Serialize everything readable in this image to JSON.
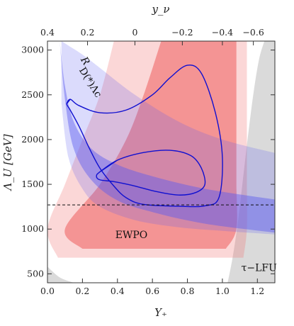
{
  "chart_data": {
    "type": "contour",
    "xlabel": "Y₊",
    "ylabel": "Λ_U [GeV]",
    "top_xlabel": "y_ν",
    "xlim": [
      0.0,
      1.3
    ],
    "ylim": [
      400,
      3100
    ],
    "x_ticks": [
      0.0,
      0.2,
      0.4,
      0.6,
      0.8,
      1.0,
      1.2
    ],
    "x_tick_labels": [
      "0.0",
      "0.2",
      "0.4",
      "0.6",
      "0.8",
      "1.0",
      "1.2"
    ],
    "y_ticks": [
      500,
      1000,
      1500,
      2000,
      2500,
      3000
    ],
    "y_tick_labels": [
      "500",
      "1000",
      "1500",
      "2000",
      "2500",
      "3000"
    ],
    "top_ticks_at_x": [
      0.0,
      0.229,
      0.5,
      0.771,
      1.0,
      1.177
    ],
    "top_tick_labels": [
      "0.4",
      "0.2",
      "0",
      "−0.2",
      "−0.4",
      "−0.6"
    ],
    "reference_line": {
      "y": 1270,
      "style": "dashed"
    },
    "regions": [
      {
        "name": "τ-LFU",
        "color": "#d6d6d6",
        "bands": [
          {
            "x": [
              1.03,
              1.06,
              1.09,
              1.12,
              1.15,
              1.18,
              1.21,
              1.24
            ],
            "y": [
              400,
              700,
              1100,
              1600,
              2100,
              2550,
              2900,
              3100
            ]
          },
          {
            "x": [
              0.0,
              0.07,
              0.15
            ],
            "y": [
              580,
              460,
              400
            ]
          }
        ]
      },
      {
        "name": "R_D(*),Λc",
        "color": "#5b5bf0",
        "outer_band": {
          "x": [
            0.08,
            0.12,
            0.2,
            0.3,
            0.5,
            0.75,
            1.0,
            1.3
          ],
          "upper_y": [
            3100,
            3050,
            2950,
            2800,
            2500,
            2200,
            2000,
            1850
          ],
          "lower_y": [
            2400,
            1800,
            1450,
            1250,
            1100,
            1020,
            980,
            940
          ]
        },
        "inner_band": {
          "x": [
            0.07,
            0.1,
            0.15,
            0.25,
            0.4,
            0.6,
            0.9,
            1.3
          ],
          "upper_y": [
            3100,
            2600,
            2200,
            1900,
            1720,
            1590,
            1450,
            1330
          ],
          "lower_y": [
            3100,
            2450,
            1900,
            1550,
            1320,
            1190,
            1060,
            960
          ]
        }
      },
      {
        "name": "EWPO",
        "color": "#f07070",
        "outer_band": {
          "y": [
            680,
            1000,
            1500,
            2000,
            2500,
            3100
          ],
          "left_x": [
            0.06,
            0.0,
            0.1,
            0.2,
            0.3,
            0.38
          ],
          "right_x": [
            1.12,
            1.14,
            1.14,
            1.14,
            1.14,
            1.14
          ]
        },
        "inner_band": {
          "y": [
            780,
            1000,
            1500,
            2000,
            2500,
            3100
          ],
          "left_x": [
            0.2,
            0.1,
            0.3,
            0.45,
            0.55,
            0.65
          ],
          "right_x": [
            1.02,
            1.08,
            1.08,
            1.08,
            1.08,
            1.08
          ]
        }
      }
    ],
    "contours": [
      {
        "level": "outer",
        "x": [
          0.11,
          0.13,
          0.18,
          0.3,
          0.45,
          0.6,
          0.7,
          0.8,
          0.88,
          0.96,
          1.0,
          0.98,
          0.9,
          0.75,
          0.55,
          0.45,
          0.38,
          0.3,
          0.24,
          0.18,
          0.13,
          0.11
        ],
        "y": [
          2400,
          2450,
          2380,
          2300,
          2330,
          2500,
          2690,
          2830,
          2740,
          2300,
          1800,
          1350,
          1260,
          1255,
          1275,
          1350,
          1480,
          1680,
          1900,
          2150,
          2330,
          2400
        ]
      },
      {
        "level": "inner",
        "x": [
          0.3,
          0.4,
          0.55,
          0.7,
          0.82,
          0.88,
          0.9,
          0.85,
          0.75,
          0.62,
          0.48,
          0.38,
          0.3,
          0.28,
          0.3
        ],
        "y": [
          1640,
          1770,
          1855,
          1880,
          1820,
          1680,
          1500,
          1410,
          1380,
          1420,
          1490,
          1530,
          1550,
          1590,
          1640
        ]
      }
    ],
    "annotations": [
      {
        "text": "EWPO",
        "x": 0.48,
        "y": 900
      },
      {
        "text": "τ−LFU",
        "x": 1.21,
        "y": 530
      },
      {
        "text": "R",
        "x": 0.2,
        "y": 2860
      },
      {
        "text": "D(*)Λc",
        "x": 0.23,
        "y": 2620
      }
    ],
    "grid": false
  }
}
